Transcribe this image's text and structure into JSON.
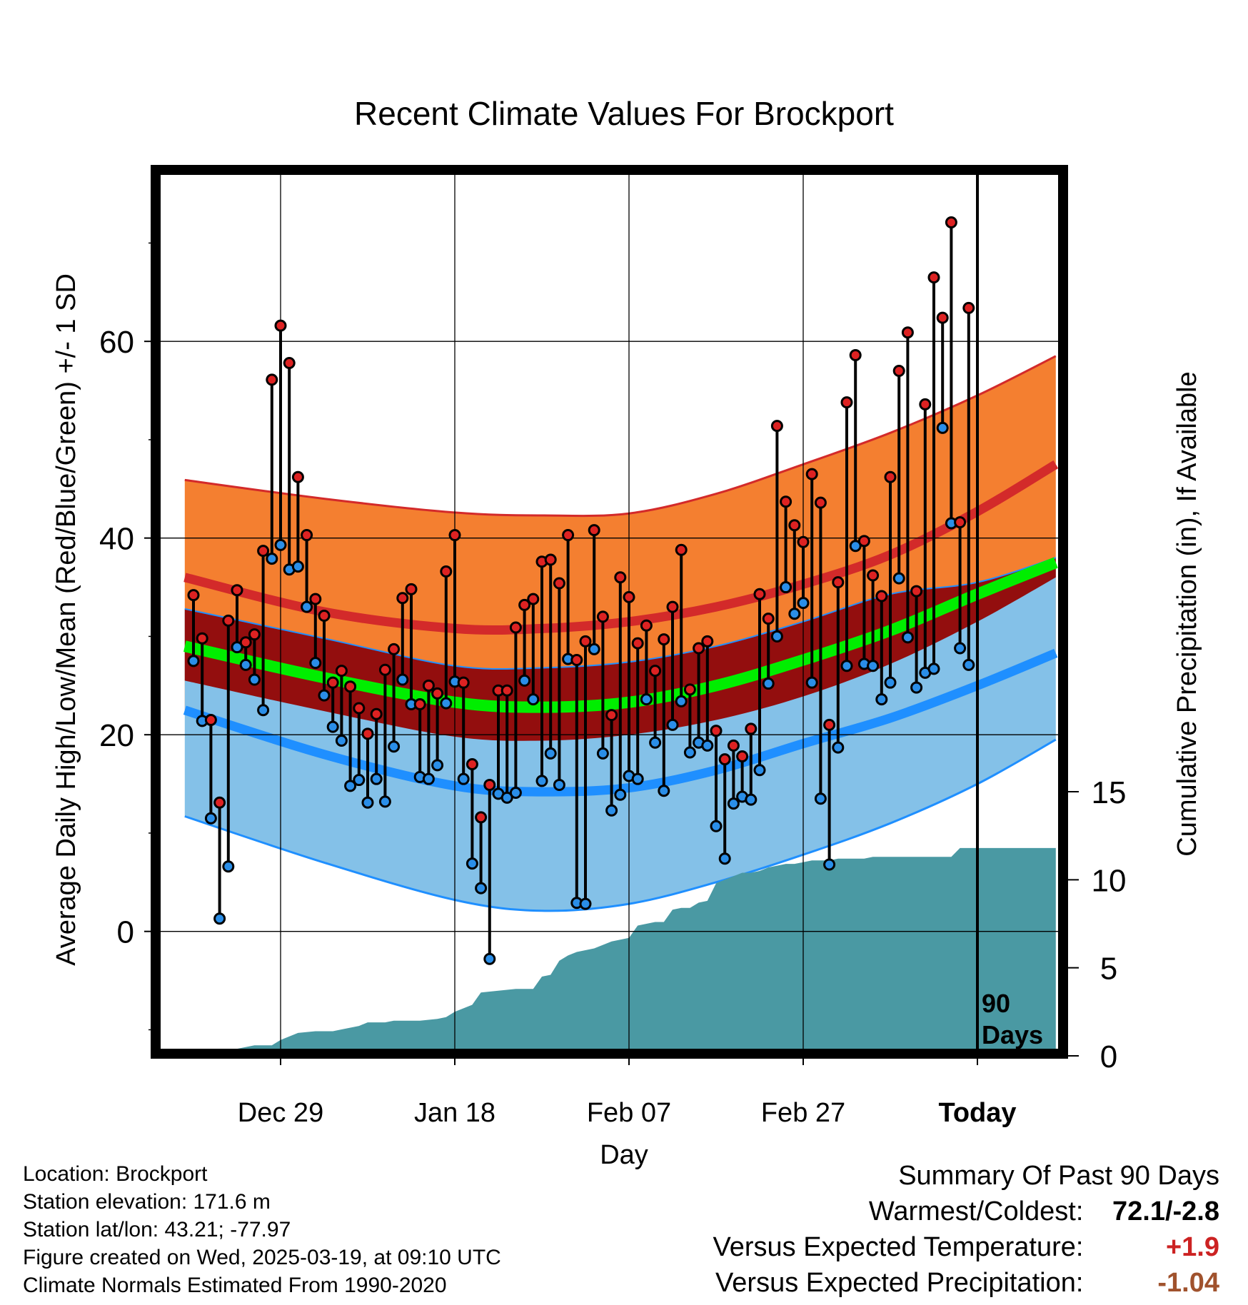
{
  "chart_data": {
    "type": "line",
    "title": "Recent Climate Values For Brockport",
    "xlabel": "Day",
    "ylabel_left": "Average Daily High/Low/Mean (Red/Blue/Green) +/- 1 SD",
    "ylabel_right": "Cumulative Precipitation (in), If Available",
    "x_tick_labels": [
      "Dec 29",
      "Jan 18",
      "Feb 07",
      "Feb 27",
      "Today"
    ],
    "x_tick_days": [
      -80,
      -60,
      -40,
      -20,
      0
    ],
    "xlim_days": [
      -91,
      9
    ],
    "ylim_left": [
      -12,
      77
    ],
    "y_left_ticks": [
      0,
      20,
      40,
      60
    ],
    "ylim_right": [
      0,
      30
    ],
    "y_right_ticks": [
      0,
      5,
      10,
      15
    ],
    "today_marker": "90\nDays",
    "grid": true,
    "normals": {
      "days": [
        -91,
        -75,
        -60,
        -50,
        -40,
        -30,
        -20,
        -10,
        0,
        9
      ],
      "high_mean": [
        36.0,
        32.5,
        30.8,
        30.8,
        31.5,
        33.0,
        35.3,
        38.3,
        42.7,
        47.5
      ],
      "high_plus_sd": [
        45.9,
        44.0,
        42.6,
        42.3,
        42.5,
        44.5,
        47.5,
        50.7,
        54.5,
        58.5
      ],
      "low_mean": [
        22.5,
        18.0,
        14.8,
        14.2,
        14.6,
        16.4,
        19.1,
        21.7,
        25.0,
        28.3
      ],
      "low_minus_sd": [
        11.7,
        7.0,
        3.2,
        2.1,
        2.8,
        5.0,
        7.8,
        11.0,
        15.0,
        19.5
      ],
      "mean_mean": [
        29.0,
        25.8,
        23.3,
        22.8,
        23.3,
        25.0,
        27.6,
        30.6,
        34.3,
        37.5
      ],
      "mean_minus_sd": [
        25.5,
        22.4,
        19.8,
        19.4,
        20.0,
        21.5,
        23.9,
        27.2,
        31.5,
        36.0
      ],
      "mean_plus_sd": [
        32.8,
        29.8,
        27.0,
        26.8,
        27.4,
        29.0,
        31.5,
        34.3,
        35.5,
        38.0
      ]
    },
    "daily": {
      "days": [
        -90,
        -89,
        -88,
        -87,
        -86,
        -85,
        -84,
        -83,
        -82,
        -81,
        -80,
        -79,
        -78,
        -77,
        -76,
        -75,
        -74,
        -73,
        -72,
        -71,
        -70,
        -69,
        -68,
        -67,
        -66,
        -65,
        -64,
        -63,
        -62,
        -61,
        -60,
        -59,
        -58,
        -57,
        -56,
        -55,
        -54,
        -53,
        -52,
        -51,
        -50,
        -49,
        -48,
        -47,
        -46,
        -45,
        -44,
        -43,
        -42,
        -41,
        -40,
        -39,
        -38,
        -37,
        -36,
        -35,
        -34,
        -33,
        -32,
        -31,
        -30,
        -29,
        -28,
        -27,
        -26,
        -25,
        -24,
        -23,
        -22,
        -21,
        -20,
        -19,
        -18,
        -17,
        -16,
        -15,
        -14,
        -13,
        -12,
        -11,
        -10,
        -9,
        -8,
        -7,
        -6,
        -5,
        -4,
        -3,
        -2,
        -1
      ],
      "high": [
        34.2,
        29.8,
        21.5,
        13.1,
        31.6,
        34.7,
        29.4,
        30.2,
        38.7,
        56.1,
        61.6,
        57.8,
        46.2,
        40.3,
        33.8,
        32.1,
        25.3,
        26.5,
        24.9,
        22.7,
        20.1,
        22.1,
        26.6,
        28.7,
        33.9,
        34.8,
        23.1,
        25.0,
        24.2,
        36.6,
        40.3,
        25.3,
        17.0,
        11.6,
        14.9,
        24.5,
        24.5,
        30.9,
        33.2,
        33.8,
        37.6,
        37.8,
        35.4,
        40.3,
        27.6,
        29.5,
        40.8,
        32.0,
        22.0,
        36.0,
        34.0,
        29.3,
        31.1,
        26.5,
        29.7,
        33.0,
        38.8,
        24.6,
        28.8,
        29.5,
        20.4,
        17.5,
        18.9,
        17.8,
        20.6,
        34.3,
        31.8,
        51.4,
        43.7,
        41.3,
        39.6,
        46.5,
        43.6,
        21.0,
        35.5,
        53.8,
        58.6,
        39.7,
        36.2,
        34.1,
        46.2,
        57.0,
        60.9,
        34.6,
        53.6,
        66.5,
        62.4,
        72.1,
        41.6,
        63.4
      ],
      "low": [
        27.5,
        21.4,
        11.5,
        1.3,
        6.6,
        28.9,
        27.1,
        25.6,
        22.5,
        37.9,
        39.3,
        36.8,
        37.1,
        33.0,
        27.3,
        24.0,
        20.8,
        19.4,
        14.8,
        15.4,
        13.1,
        15.5,
        13.2,
        18.8,
        25.6,
        23.1,
        15.7,
        15.5,
        16.9,
        23.2,
        25.4,
        15.5,
        6.9,
        4.4,
        -2.8,
        14.0,
        13.6,
        14.1,
        25.5,
        23.6,
        15.3,
        18.1,
        14.9,
        27.7,
        2.9,
        2.8,
        28.7,
        18.1,
        12.3,
        13.9,
        15.8,
        15.5,
        23.6,
        19.2,
        14.3,
        21.0,
        23.4,
        18.2,
        19.2,
        18.9,
        10.7,
        7.4,
        13.0,
        13.7,
        13.4,
        16.4,
        25.2,
        30.0,
        35.0,
        32.3,
        33.4,
        25.3,
        13.5,
        6.8,
        18.7,
        27.0,
        39.2,
        27.2,
        27.0,
        23.6,
        25.3,
        35.9,
        29.9,
        24.8,
        26.3,
        26.7,
        51.2,
        41.5,
        28.8,
        27.1
      ]
    },
    "precipitation": {
      "days": [
        -91,
        -86,
        -85,
        -83,
        -81,
        -80,
        -78,
        -76,
        -75,
        -74,
        -73,
        -71,
        -70,
        -69,
        -68,
        -67,
        -66,
        -65,
        -64,
        -62,
        -61,
        -60,
        -59,
        -58,
        -57,
        -55,
        -53,
        -52,
        -51,
        -50,
        -49,
        -48,
        -47,
        -46,
        -45,
        -44,
        -43,
        -42,
        -40,
        -39,
        -38,
        -37,
        -36,
        -35,
        -34,
        -33,
        -32,
        -31,
        -30,
        -29,
        -28,
        -27,
        -26,
        -25,
        -24,
        -23,
        -22,
        -21,
        -20,
        -19,
        -18,
        -17,
        -16,
        -15,
        -14,
        -13,
        -12,
        -11,
        -10,
        -9,
        -8,
        -7,
        -6,
        -5,
        -4,
        -3,
        -2,
        -1,
        0,
        9
      ],
      "values": [
        0.0,
        0.0,
        0.4,
        0.6,
        0.6,
        0.9,
        1.3,
        1.4,
        1.4,
        1.4,
        1.5,
        1.7,
        1.9,
        1.9,
        1.9,
        2.0,
        2.0,
        2.0,
        2.0,
        2.1,
        2.2,
        2.5,
        2.7,
        2.9,
        3.6,
        3.7,
        3.8,
        3.8,
        3.8,
        4.5,
        4.6,
        5.4,
        5.7,
        5.9,
        6.0,
        6.1,
        6.3,
        6.5,
        6.7,
        7.4,
        7.5,
        7.6,
        7.6,
        8.3,
        8.4,
        8.4,
        8.7,
        8.8,
        9.8,
        10.0,
        10.2,
        10.4,
        10.4,
        10.5,
        10.7,
        10.8,
        10.9,
        10.9,
        11.0,
        11.1,
        11.1,
        11.1,
        11.2,
        11.2,
        11.2,
        11.2,
        11.3,
        11.3,
        11.3,
        11.3,
        11.3,
        11.3,
        11.3,
        11.3,
        11.3,
        11.3,
        11.8,
        11.8,
        11.8,
        11.8
      ]
    },
    "colors": {
      "high_band": "#f47f30",
      "high_line": "#d32a2a",
      "low_band": "#84c1e8",
      "low_line": "#1f8fff",
      "mean_band": "#930e0e",
      "mean_line": "#00ee00",
      "precip_fill": "#4a99a3",
      "high_point": "#dd2222",
      "low_point": "#2a8ee8"
    }
  },
  "footer": {
    "location": "Location: Brockport",
    "elevation": "Station elevation: 171.6 m",
    "latlon": "Station lat/lon: 43.21; -77.97",
    "created": "Figure created on Wed, 2025-03-19, at 09:10 UTC",
    "normals": "Climate Normals Estimated From 1990-2020"
  },
  "summary": {
    "heading": "Summary Of Past 90 Days",
    "warm_cold_label": "Warmest/Coldest:",
    "warm_cold_value": "72.1/-2.8",
    "dev_temp_label": "Versus Expected Temperature:",
    "dev_temp_value": "+1.9",
    "dev_precip_label": "Versus Expected Precipitation:",
    "dev_precip_value": "-1.04"
  }
}
